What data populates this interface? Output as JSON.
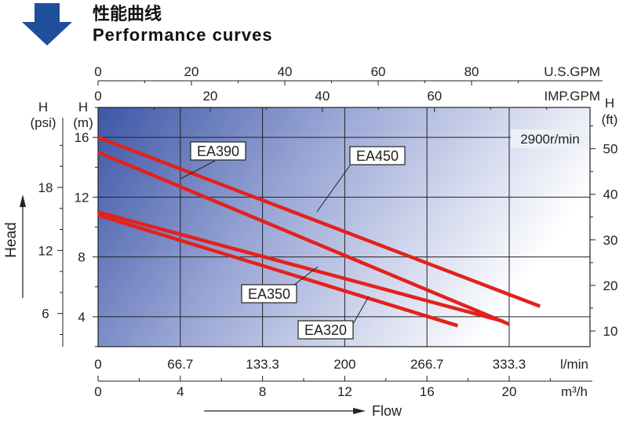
{
  "header": {
    "title_cn": "性能曲线",
    "title_en": "Performance curves",
    "arrow_icon": "down-arrow-icon",
    "arrow_color": "#1f4e9b"
  },
  "chart_data": {
    "type": "line",
    "speed_label": "2900r/min",
    "x": {
      "unit": "m³/h",
      "range": [
        0,
        24
      ],
      "ticks": [
        0,
        4,
        8,
        12,
        16,
        20
      ]
    },
    "secondary_x": [
      {
        "unit": "l/min",
        "ticks": [
          0,
          66.7,
          133.3,
          200,
          266.7,
          333.3
        ]
      },
      {
        "unit": "IMP.GPM",
        "ticks": [
          0,
          20,
          40,
          60
        ]
      },
      {
        "unit": "U.S.GPM",
        "ticks": [
          0,
          20,
          40,
          60,
          80
        ]
      }
    ],
    "y": {
      "label": "H",
      "unit": "(m)",
      "range": [
        2,
        18
      ],
      "ticks": [
        4,
        8,
        12,
        16
      ]
    },
    "secondary_y": [
      {
        "label": "H",
        "unit": "(psi)",
        "ticks": [
          6,
          12,
          18
        ]
      },
      {
        "label": "H",
        "unit": "(ft)",
        "ticks": [
          10,
          20,
          30,
          40,
          50
        ]
      }
    ],
    "axis_title_y": "Head",
    "axis_title_x": "Flow",
    "grid": true,
    "series": [
      {
        "name": "EA450",
        "x": [
          0,
          21.5
        ],
        "y": [
          16.0,
          4.7
        ]
      },
      {
        "name": "EA390",
        "x": [
          0,
          20.0
        ],
        "y": [
          15.0,
          3.5
        ]
      },
      {
        "name": "EA350",
        "x": [
          0,
          19.7
        ],
        "y": [
          11.0,
          3.7
        ]
      },
      {
        "name": "EA320",
        "x": [
          0,
          17.5
        ],
        "y": [
          10.8,
          3.4
        ]
      }
    ],
    "line_color": "#e3211c"
  }
}
